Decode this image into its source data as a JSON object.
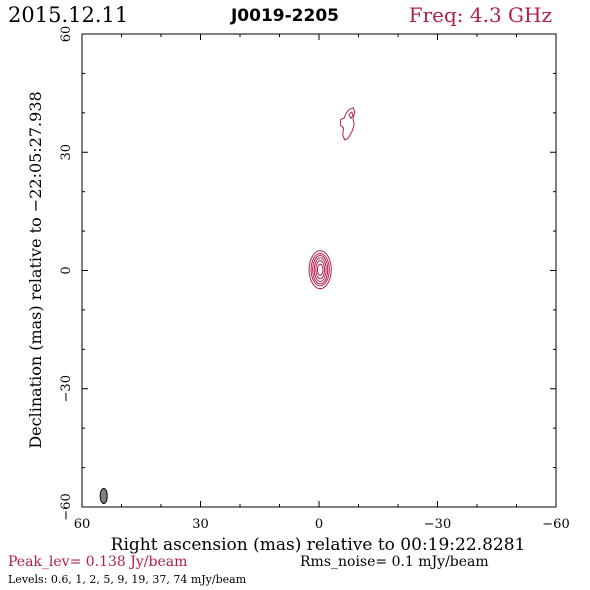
{
  "header": {
    "date": "2015.12.11",
    "source": "J0019-2205",
    "freq": "Freq: 4.3 GHz"
  },
  "footer": {
    "peak": "Peak_lev=  0.138 Jy/beam",
    "rms": "Rms_noise=  0.1 mJy/beam",
    "levels": "Levels: 0.6,   1,   2,   5,   9,  19,  37,  74 mJy/beam"
  },
  "colors": {
    "contour": "#b2204a",
    "freq_text": "#b2204a",
    "beam": "#808080"
  },
  "chart_data": {
    "type": "contour",
    "xlabel": "Right ascension (mas) relative to 00:19:22.8281",
    "ylabel": "Declination (mas) relative to −22:05:27.938",
    "xlim": [
      60,
      -60
    ],
    "ylim": [
      -60,
      60
    ],
    "xticks": [
      60,
      30,
      0,
      -30,
      -60
    ],
    "yticks": [
      -60,
      -30,
      0,
      30,
      60
    ],
    "xtick_labels": [
      "60",
      "30",
      "0",
      "−30",
      "−60"
    ],
    "ytick_labels": [
      "−60",
      "−30",
      "0",
      "30",
      "60"
    ],
    "core": {
      "x": -0.3,
      "y": 0.2,
      "rings": [
        {
          "rx": 0.7,
          "ry": 1.4
        },
        {
          "rx": 1.1,
          "ry": 2.3
        },
        {
          "rx": 1.5,
          "ry": 3.0
        },
        {
          "rx": 1.9,
          "ry": 3.6
        },
        {
          "rx": 2.3,
          "ry": 4.1
        },
        {
          "rx": 2.8,
          "ry": 4.8
        }
      ]
    },
    "jet_contours": [
      [
        [
          -6.8,
          39.8
        ],
        [
          -7.6,
          40.8
        ],
        [
          -8.6,
          41.3
        ],
        [
          -9.1,
          40.2
        ],
        [
          -8.6,
          38.6
        ],
        [
          -8.9,
          37.0
        ],
        [
          -8.4,
          35.4
        ],
        [
          -7.4,
          33.6
        ],
        [
          -6.5,
          33.1
        ],
        [
          -6.0,
          34.4
        ],
        [
          -6.2,
          36.2
        ],
        [
          -5.4,
          36.9
        ],
        [
          -5.5,
          38.3
        ],
        [
          -6.4,
          38.7
        ],
        [
          -6.8,
          39.8
        ]
      ],
      [
        [
          -7.6,
          39.6
        ],
        [
          -8.3,
          40.2
        ],
        [
          -8.6,
          39.3
        ],
        [
          -8.0,
          38.6
        ],
        [
          -7.6,
          39.6
        ]
      ]
    ],
    "beam": {
      "x": 54.5,
      "y": -57.2,
      "rx": 0.9,
      "ry": 1.9
    }
  }
}
